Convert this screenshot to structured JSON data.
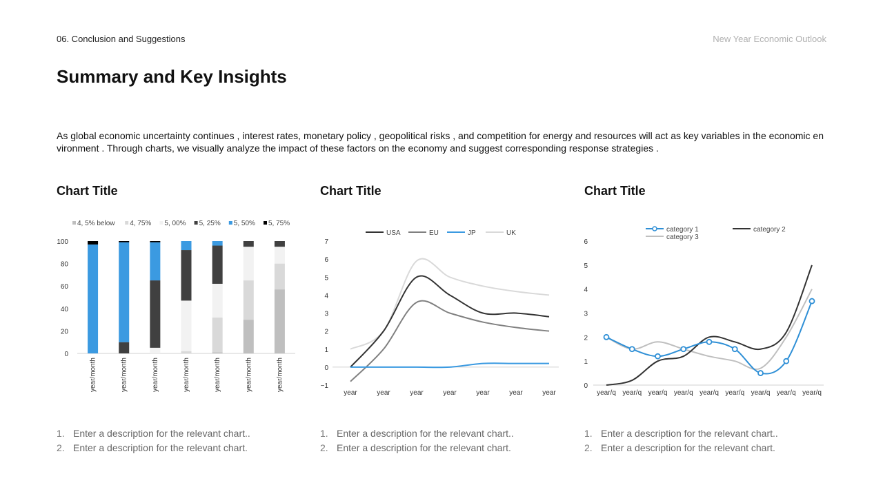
{
  "header": {
    "section_label": "06. Conclusion and Suggestions",
    "right_label": "New Year Economic Outlook"
  },
  "page": {
    "title": "Summary and Key Insights",
    "intro": "As global economic uncertainty continues , interest rates, monetary policy , geopolitical risks , and competition for energy and resources will act as key variables in the economic environment . Through charts, we visually analyze the impact of these factors on the economy and suggest corresponding response strategies ."
  },
  "panels": [
    {
      "title": "Chart Title",
      "descriptions": [
        "Enter a description for the relevant chart..",
        "Enter a description for the relevant chart."
      ]
    },
    {
      "title": "Chart Title",
      "descriptions": [
        "Enter a description for the relevant chart..",
        "Enter a description for the relevant chart."
      ]
    },
    {
      "title": "Chart Title",
      "descriptions": [
        "Enter a description for the relevant chart..",
        "Enter a description for the relevant chart."
      ]
    }
  ],
  "chart_data": [
    {
      "type": "bar",
      "stacked": true,
      "categories": [
        "year/month",
        "year/month",
        "year/month",
        "year/month",
        "year/month",
        "year/month",
        "year/month"
      ],
      "series": [
        {
          "name": "4, 5% below",
          "color": "#bfbfbf",
          "values": [
            0,
            0,
            0,
            0,
            1,
            30,
            57
          ]
        },
        {
          "name": "4, 75%",
          "color": "#d9d9d9",
          "values": [
            0,
            0,
            0,
            2,
            31,
            35,
            23
          ]
        },
        {
          "name": "5, 00%",
          "color": "#f2f2f2",
          "values": [
            0,
            0,
            5,
            45,
            30,
            30,
            15
          ]
        },
        {
          "name": "5, 25%",
          "color": "#404040",
          "values": [
            0,
            10,
            60,
            45,
            34,
            5,
            5
          ]
        },
        {
          "name": "5, 50%",
          "color": "#3b9ae1",
          "values": [
            97,
            89,
            34,
            8,
            4,
            0,
            0
          ]
        },
        {
          "name": "5, 75%",
          "color": "#000000",
          "values": [
            3,
            1,
            1,
            0,
            0,
            0,
            0
          ]
        }
      ],
      "yticks": [
        0,
        20,
        40,
        60,
        80,
        100
      ],
      "ylim": [
        0,
        100
      ],
      "legend": "top"
    },
    {
      "type": "line",
      "categories": [
        "year",
        "year",
        "year",
        "year",
        "year",
        "year",
        "year"
      ],
      "series": [
        {
          "name": "USA",
          "color": "#333333",
          "values": [
            0,
            2,
            5,
            4,
            3,
            3,
            2.8
          ]
        },
        {
          "name": "EU",
          "color": "#808080",
          "values": [
            -0.8,
            1,
            3.6,
            3,
            2.5,
            2.2,
            2
          ]
        },
        {
          "name": "JP",
          "color": "#3b9ae1",
          "values": [
            0,
            0,
            0,
            0,
            0.2,
            0.2,
            0.2
          ]
        },
        {
          "name": "UK",
          "color": "#d9d9d9",
          "values": [
            1,
            2,
            5.9,
            5,
            4.5,
            4.2,
            4
          ]
        }
      ],
      "yticks": [
        -1,
        0,
        1,
        2,
        3,
        4,
        5,
        6,
        7
      ],
      "ylim": [
        -1,
        7
      ],
      "legend": "top"
    },
    {
      "type": "line",
      "categories": [
        "year/q",
        "year/q",
        "year/q",
        "year/q",
        "year/q",
        "year/q",
        "year/q",
        "year/q",
        "year/q"
      ],
      "series": [
        {
          "name": "category 1",
          "color": "#2e8fd6",
          "markers": true,
          "values": [
            2,
            1.5,
            1.2,
            1.5,
            1.8,
            1.5,
            0.5,
            1,
            3.5
          ]
        },
        {
          "name": "category 2",
          "color": "#333333",
          "markers": false,
          "values": [
            0,
            0.2,
            1,
            1.2,
            2,
            1.8,
            1.5,
            2.2,
            5
          ]
        },
        {
          "name": "category 3",
          "color": "#bfbfbf",
          "markers": false,
          "values": [
            2,
            1.5,
            1.8,
            1.5,
            1.2,
            1,
            0.7,
            2,
            4
          ]
        }
      ],
      "yticks": [
        0,
        1,
        2,
        3,
        4,
        5,
        6
      ],
      "ylim": [
        0,
        6
      ],
      "legend": "top"
    }
  ]
}
